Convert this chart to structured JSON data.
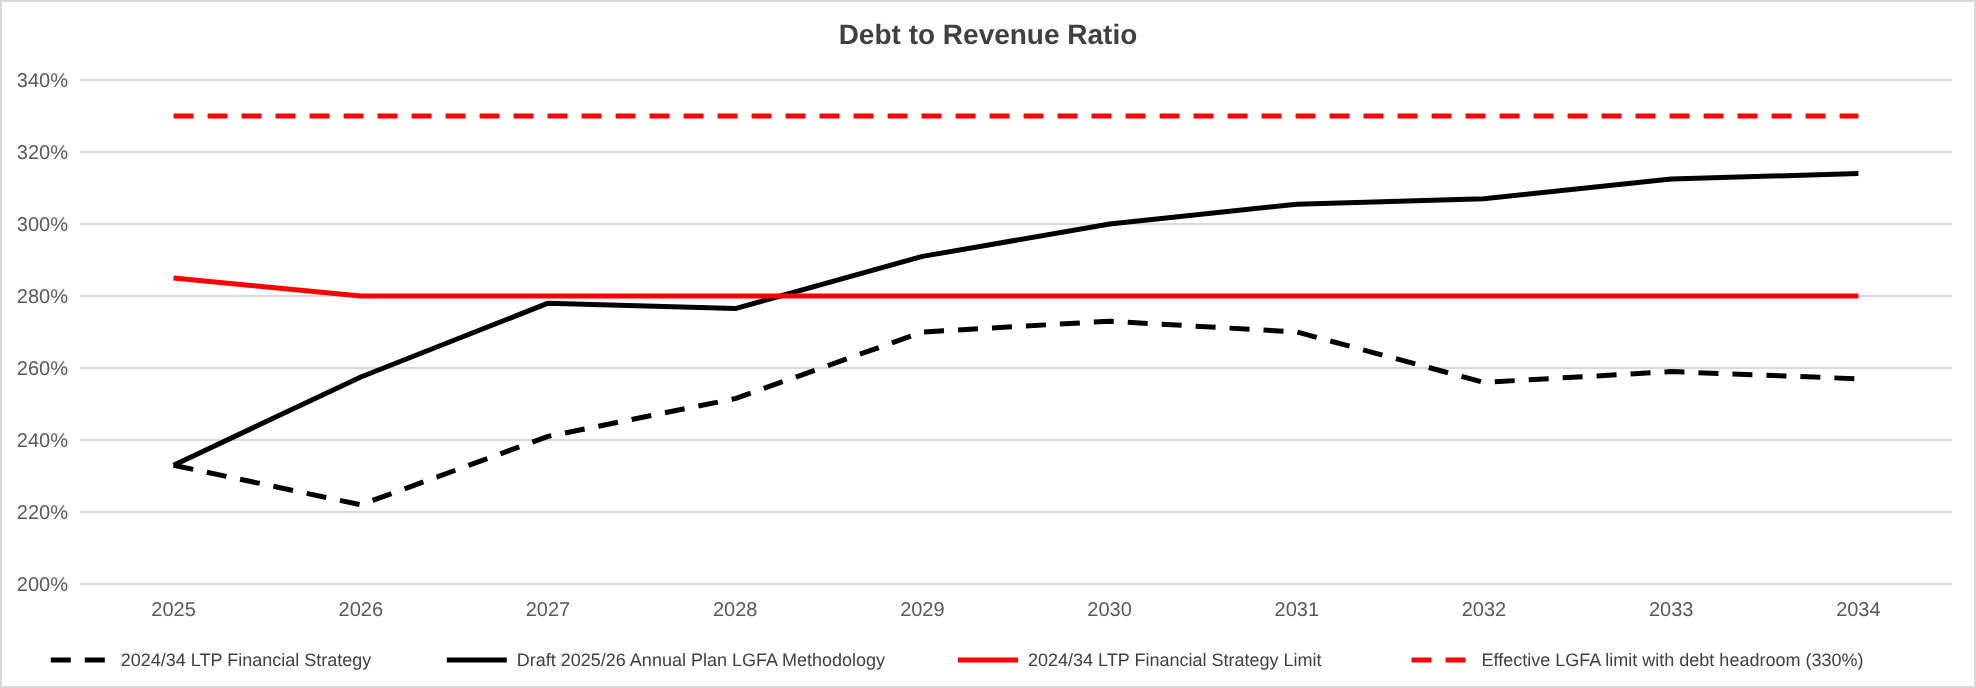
{
  "chart_data": {
    "type": "line",
    "title": "Debt to Revenue Ratio",
    "categories": [
      "2025",
      "2026",
      "2027",
      "2028",
      "2029",
      "2030",
      "2031",
      "2032",
      "2033",
      "2034"
    ],
    "series": [
      {
        "name": "2024/34 LTP Financial Strategy",
        "color": "#000000",
        "line_style": "dashed",
        "values": [
          233,
          222,
          241,
          251.5,
          270,
          273,
          270,
          256,
          259,
          257
        ]
      },
      {
        "name": "Draft 2025/26 Annual Plan LGFA Methodology",
        "color": "#000000",
        "line_style": "solid",
        "values": [
          233,
          257.5,
          278,
          276.5,
          291,
          300,
          305.5,
          307,
          312.5,
          314
        ]
      },
      {
        "name": "2024/34 LTP Financial Strategy Limit",
        "color": "#ff0000",
        "line_style": "solid",
        "values": [
          285,
          280,
          280,
          280,
          280,
          280,
          280,
          280,
          280,
          280
        ]
      },
      {
        "name": "Effective LGFA limit with debt headroom (330%)",
        "color": "#ff0000",
        "line_style": "dashed",
        "values": [
          330,
          330,
          330,
          330,
          330,
          330,
          330,
          330,
          330,
          330
        ]
      }
    ],
    "ylim": [
      200,
      340
    ],
    "yticks": [
      {
        "value": 200,
        "label": "200%"
      },
      {
        "value": 220,
        "label": "220%"
      },
      {
        "value": 240,
        "label": "240%"
      },
      {
        "value": 260,
        "label": "260%"
      },
      {
        "value": 280,
        "label": "280%"
      },
      {
        "value": 300,
        "label": "300%"
      },
      {
        "value": 320,
        "label": "320%"
      },
      {
        "value": 340,
        "label": "340%"
      }
    ],
    "grid": "y",
    "legend": "bottom",
    "marker": "none"
  }
}
